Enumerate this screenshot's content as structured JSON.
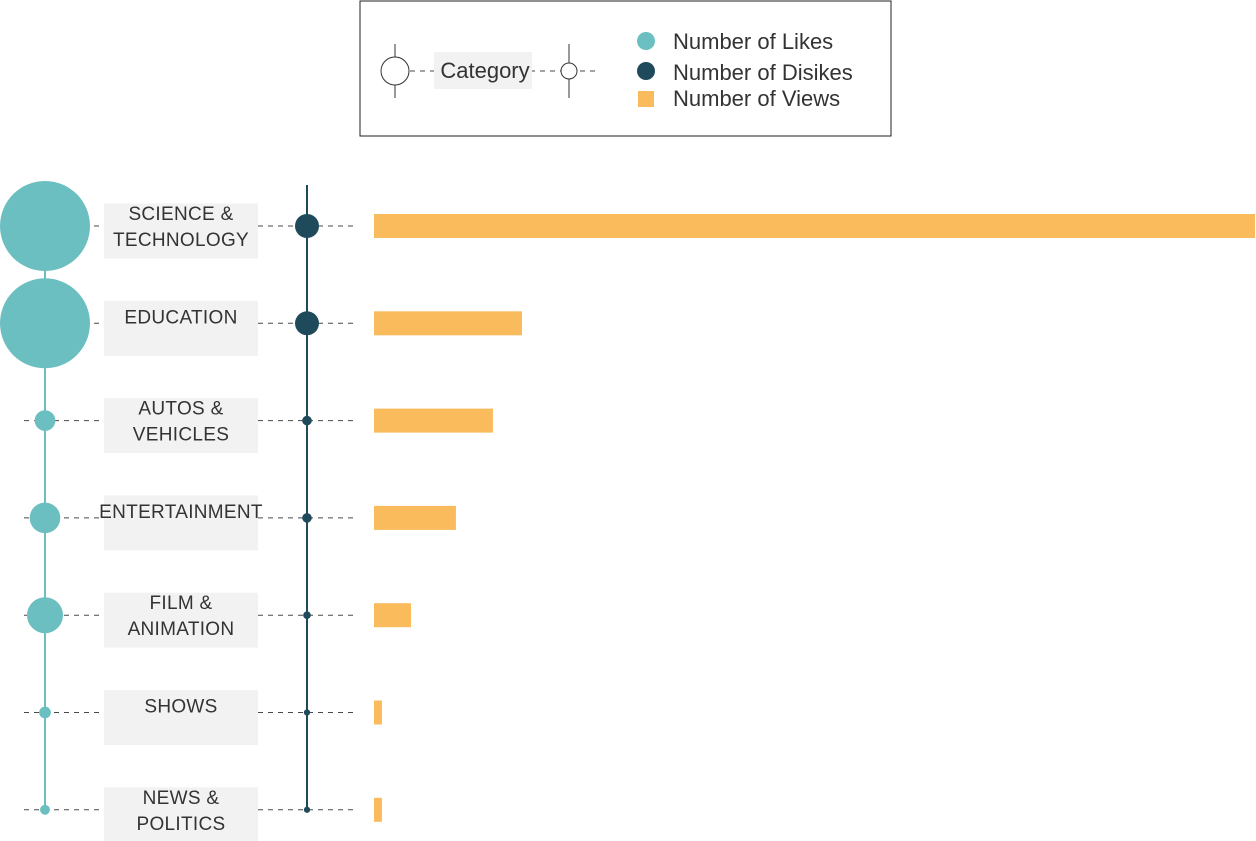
{
  "legend": {
    "category_label": "Category",
    "items": [
      {
        "label": "Number of Likes",
        "marker": "circle",
        "color": "#6cbfc0"
      },
      {
        "label": "Number of Disikes",
        "marker": "circle",
        "color": "#1f4a5c"
      },
      {
        "label": "Number of Views",
        "marker": "square",
        "color": "#f9bb5c"
      }
    ]
  },
  "colors": {
    "likes": "#6cbfc0",
    "dislikes": "#1f4a5c",
    "views": "#f9bb5c",
    "label_bg": "#f2f2f2"
  },
  "chart_data": {
    "type": "bar",
    "categories": [
      [
        "SCIENCE &",
        "TECHNOLOGY"
      ],
      [
        "EDUCATION"
      ],
      [
        "AUTOS &",
        "VEHICLES"
      ],
      [
        "ENTERTAINMENT"
      ],
      [
        "FILM &",
        "ANIMATION"
      ],
      [
        "SHOWS"
      ],
      [
        "NEWS &",
        "POLITICS"
      ]
    ],
    "series": [
      {
        "name": "Number of Likes",
        "encoding": "circle-size",
        "values": [
          1.0,
          1.0,
          0.23,
          0.34,
          0.4,
          0.13,
          0.11
        ]
      },
      {
        "name": "Number of Disikes",
        "encoding": "circle-size",
        "values": [
          1.0,
          1.0,
          0.4,
          0.4,
          0.32,
          0.26,
          0.26
        ]
      },
      {
        "name": "Number of Views",
        "encoding": "bar-length",
        "values": [
          1.0,
          0.168,
          0.135,
          0.093,
          0.042,
          0.009,
          0.009
        ]
      }
    ],
    "title": "",
    "xlabel": "",
    "ylabel": ""
  }
}
